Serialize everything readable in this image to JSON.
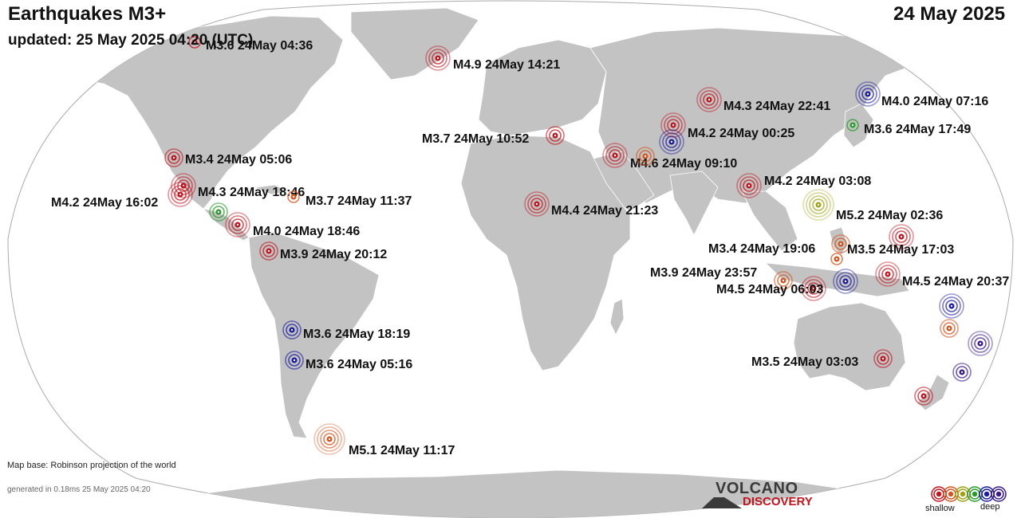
{
  "header": {
    "title": "Earthquakes M3+",
    "updated": "updated: 25 May 2025 04:20 (UTC)",
    "date": "24 May 2025"
  },
  "footer": {
    "map_base": "Map base: Robinson projection of the world",
    "generated": "generated in 0.18ms 25 May 2025 04:20"
  },
  "logo": {
    "line1": "VOLCANO",
    "line2": "DISCOVERY"
  },
  "legend": {
    "shallow": "shallow",
    "deep": "deep",
    "colors": [
      "#c0141e",
      "#d2541e",
      "#a0a014",
      "#2a9a2a",
      "#1a1aa0",
      "#3a1a8a"
    ]
  },
  "colors": {
    "ocean": "#ffffff",
    "land": "#c3c3c3",
    "border": "#ffffff",
    "outline": "#aaaaaa"
  },
  "quakes": [
    {
      "label": "M3.6 24May 04:36",
      "color": "#c0141e",
      "size": 1
    },
    {
      "label": "M4.9 24May 14:21",
      "color": "#c0141e",
      "size": 3
    },
    {
      "label": "M4.3 24May 22:41",
      "color": "#c0141e",
      "size": 3
    },
    {
      "label": "M4.0 24May 07:16",
      "color": "#1a1aa0",
      "size": 3
    },
    {
      "label": "M3.6 24May 17:49",
      "color": "#2a9a2a",
      "size": 1
    },
    {
      "label": "M4.2 24May 00:25",
      "color": "#c0141e",
      "size": 3
    },
    {
      "label": "",
      "color": "#1a1aa0",
      "size": 3
    },
    {
      "label": "M3.7 24May 10:52",
      "color": "#c0141e",
      "size": 2
    },
    {
      "label": "M4.6 24May 09:10",
      "color": "#c0141e",
      "size": 3
    },
    {
      "label": "",
      "color": "#d2541e",
      "size": 2
    },
    {
      "label": "M3.4 24May 05:06",
      "color": "#c0141e",
      "size": 2
    },
    {
      "label": "M4.3 24May 18:46",
      "color": "#c0141e",
      "size": 3
    },
    {
      "label": "M4.2 24May 16:02",
      "color": "#c0141e",
      "size": 3
    },
    {
      "label": "M3.7 24May 11:37",
      "color": "#d2541e",
      "size": 1
    },
    {
      "label": "",
      "color": "#2a9a2a",
      "size": 2
    },
    {
      "label": "M4.0 24May 18:46",
      "color": "#c0141e",
      "size": 3
    },
    {
      "label": "M3.9 24May 20:12",
      "color": "#c0141e",
      "size": 2
    },
    {
      "label": "M4.4 24May 21:23",
      "color": "#c0141e",
      "size": 3
    },
    {
      "label": "M4.2 24May 03:08",
      "color": "#c0141e",
      "size": 3
    },
    {
      "label": "M5.2 24May 02:36",
      "color": "#a0a014",
      "size": 4
    },
    {
      "label": "M3.4 24May 19:06",
      "color": "#d2541e",
      "size": 2
    },
    {
      "label": "M3.5 24May 17:03",
      "color": "#c0141e",
      "size": 3
    },
    {
      "label": "",
      "color": "#d2541e",
      "size": 1
    },
    {
      "label": "M3.9 24May 23:57",
      "color": "#d2541e",
      "size": 2
    },
    {
      "label": "M4.5 24May 06:03",
      "color": "#c0141e",
      "size": 3
    },
    {
      "label": "",
      "color": "#1a1aa0",
      "size": 3
    },
    {
      "label": "M4.5 24May 20:37",
      "color": "#c0141e",
      "size": 3
    },
    {
      "label": "",
      "color": "#1a1aa0",
      "size": 3
    },
    {
      "label": "",
      "color": "#d2541e",
      "size": 2
    },
    {
      "label": "",
      "color": "#3a1a8a",
      "size": 3
    },
    {
      "label": "M3.5 24May 03:03",
      "color": "#c0141e",
      "size": 2
    },
    {
      "label": "",
      "color": "#3a1a8a",
      "size": 2
    },
    {
      "label": "",
      "color": "#c0141e",
      "size": 2
    },
    {
      "label": "M3.6 24May 18:19",
      "color": "#1a1aa0",
      "size": 2
    },
    {
      "label": "M3.6 24May 05:16",
      "color": "#1a1aa0",
      "size": 2
    },
    {
      "label": "M5.1 24May 11:17",
      "color": "#d2541e",
      "size": 4
    }
  ]
}
